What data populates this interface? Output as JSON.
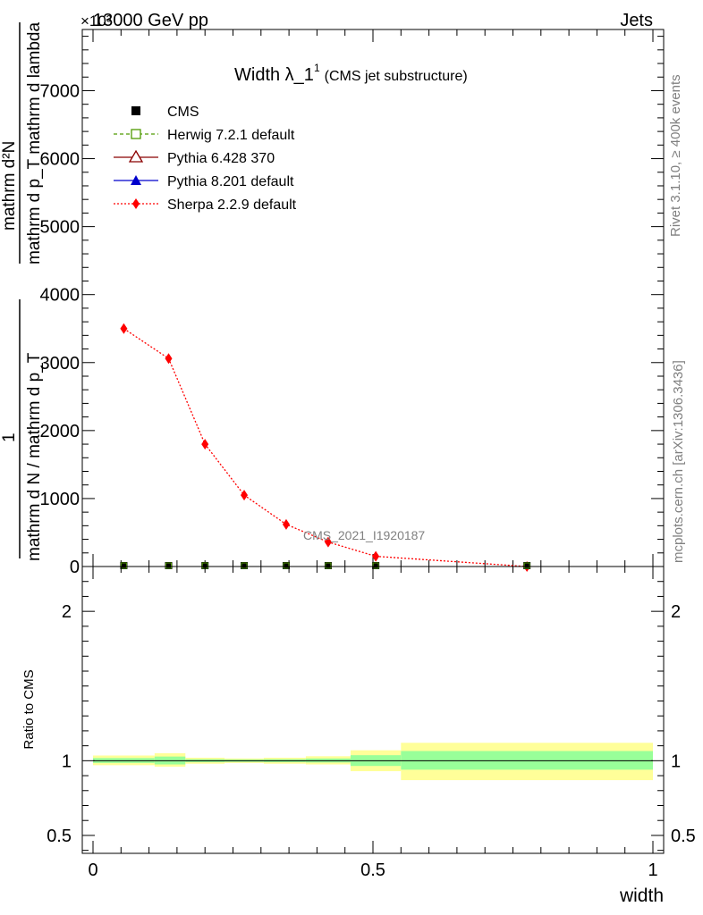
{
  "header": {
    "energy_label": "13000 GeV pp",
    "category_label": "Jets",
    "exponent_label": "×10³"
  },
  "side_labels": {
    "rivet": "Rivet 3.1.10, ≥ 400k events",
    "mcplots": "mcplots.cern.ch [arXiv:1306.3436]"
  },
  "chart_data": [
    {
      "type": "line",
      "title": "Width λ_1",
      "title_superscript": "1",
      "title_suffix": "(CMS jet substructure)",
      "watermark": "CMS_2021_I1920187",
      "ylabel_parts": {
        "numerator": "mathrm d²N",
        "denominator": "mathrm d p_T mathrm d lambda",
        "prefix_num": "1",
        "prefix_den": "mathrm d N / mathrm d p_T"
      },
      "xlim": [
        0,
        1
      ],
      "ylim": [
        0,
        7900
      ],
      "y_scale_factor": 1000,
      "y_ticks": [
        0,
        1000,
        2000,
        3000,
        4000,
        5000,
        6000,
        7000
      ],
      "y_tick_labels": [
        "0",
        "1000",
        "2000",
        "3000",
        "4000",
        "5000",
        "6000",
        "7000"
      ],
      "legend_position": "top-left",
      "legend": [
        {
          "name": "CMS",
          "color": "#000000",
          "marker": "square-filled",
          "line": "none"
        },
        {
          "name": "Herwig 7.2.1 default",
          "color": "#4f9a00",
          "marker": "square-open",
          "line": "dashed"
        },
        {
          "name": "Pythia 6.428 370",
          "color": "#8b0000",
          "marker": "triangle-open",
          "line": "solid"
        },
        {
          "name": "Pythia 8.201 default",
          "color": "#0000cc",
          "marker": "triangle-filled",
          "line": "solid"
        },
        {
          "name": "Sherpa 2.2.9 default",
          "color": "#ff0000",
          "marker": "diamond-filled",
          "line": "dotted"
        }
      ],
      "cms_points": {
        "x": [
          0.055,
          0.135,
          0.2,
          0.27,
          0.345,
          0.42,
          0.505,
          0.775
        ],
        "y": [
          0,
          0,
          0,
          0,
          0,
          0,
          0,
          0
        ]
      },
      "sherpa_points": {
        "x": [
          0.055,
          0.135,
          0.2,
          0.27,
          0.345,
          0.42,
          0.505,
          0.775
        ],
        "y": [
          3500,
          3060,
          1800,
          1050,
          620,
          360,
          150,
          0
        ]
      }
    },
    {
      "type": "area",
      "ylabel": "Ratio to CMS",
      "xlabel": "width",
      "xlim": [
        0,
        1
      ],
      "ylim": [
        0.38,
        2.3
      ],
      "x_ticks": [
        0,
        0.5,
        1
      ],
      "x_tick_labels": [
        "0",
        "0.5",
        "1"
      ],
      "y_ticks": [
        0.5,
        1,
        2
      ],
      "y_tick_labels": [
        "0.5",
        "1",
        "2"
      ],
      "bands": {
        "bin_edges": [
          0,
          0.11,
          0.165,
          0.235,
          0.305,
          0.38,
          0.46,
          0.55,
          1.0
        ],
        "yellow_low": [
          0.97,
          0.96,
          0.98,
          0.985,
          0.98,
          0.975,
          0.93,
          0.87
        ],
        "yellow_high": [
          1.035,
          1.05,
          1.02,
          1.015,
          1.02,
          1.03,
          1.07,
          1.12
        ],
        "green_low": [
          0.985,
          0.975,
          0.99,
          0.992,
          0.99,
          0.988,
          0.965,
          0.94
        ],
        "green_high": [
          1.018,
          1.028,
          1.01,
          1.008,
          1.01,
          1.015,
          1.037,
          1.065
        ]
      },
      "yellow_color": "#ffff99",
      "green_color": "#99ff99"
    }
  ]
}
